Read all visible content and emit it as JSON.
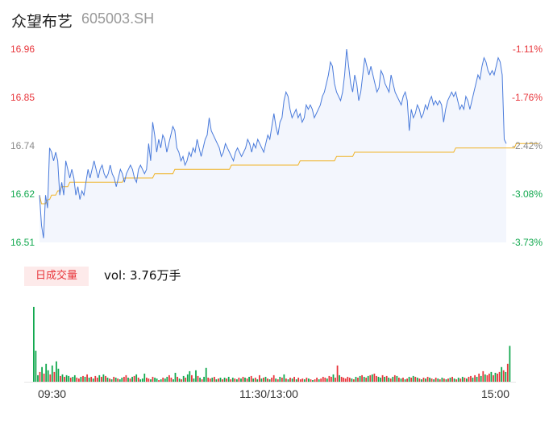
{
  "header": {
    "name": "众望布艺",
    "code": "605003.SH"
  },
  "volume_section": {
    "badge": "日成交量",
    "vol_text": "vol: 3.76万手"
  },
  "colors": {
    "up": "#e8353b",
    "down": "#11a84e",
    "price_line": "#4a7bdb",
    "avg_line": "#f0b429",
    "fill": "#f3f6fd"
  },
  "chart_data": [
    {
      "type": "line",
      "title": "",
      "y_ticks_left": [
        "16.96",
        "16.85",
        "16.74",
        "16.62",
        "16.51"
      ],
      "y_ticks_right": [
        "-1.11%",
        "-1.76%",
        "-2.42%",
        "-3.08%",
        "-3.73%"
      ],
      "ylim": [
        16.51,
        16.96
      ],
      "x_ticks": [
        "09:30",
        "11:30/13:00",
        "15:00"
      ],
      "series": [
        {
          "values": [
            16.62,
            16.55,
            16.52,
            16.62,
            16.59,
            16.73,
            16.72,
            16.7,
            16.72,
            16.7,
            16.62,
            16.65,
            16.62,
            16.7,
            16.68,
            16.66,
            16.68,
            16.66,
            16.62,
            16.64,
            16.61,
            16.63,
            16.62,
            16.65,
            16.68,
            16.66,
            16.68,
            16.7,
            16.68,
            16.66,
            16.68,
            16.69,
            16.67,
            16.66,
            16.67,
            16.69,
            16.67,
            16.66,
            16.64,
            16.66,
            16.68,
            16.67,
            16.65,
            16.67,
            16.68,
            16.69,
            16.68,
            16.66,
            16.65,
            16.68,
            16.69,
            16.68,
            16.67,
            16.68,
            16.74,
            16.7,
            16.79,
            16.76,
            16.72,
            16.75,
            16.73,
            16.76,
            16.75,
            16.72,
            16.74,
            16.76,
            16.78,
            16.77,
            16.73,
            16.72,
            16.7,
            16.71,
            16.69,
            16.7,
            16.72,
            16.71,
            16.73,
            16.72,
            16.75,
            16.73,
            16.71,
            16.73,
            16.75,
            16.76,
            16.8,
            16.77,
            16.76,
            16.75,
            16.74,
            16.73,
            16.71,
            16.72,
            16.74,
            16.73,
            16.72,
            16.71,
            16.7,
            16.72,
            16.73,
            16.72,
            16.71,
            16.72,
            16.73,
            16.75,
            16.74,
            16.72,
            16.74,
            16.73,
            16.75,
            16.74,
            16.73,
            16.72,
            16.74,
            16.76,
            16.75,
            16.78,
            16.81,
            16.78,
            16.76,
            16.79,
            16.8,
            16.84,
            16.86,
            16.85,
            16.82,
            16.8,
            16.81,
            16.82,
            16.8,
            16.81,
            16.79,
            16.8,
            16.83,
            16.82,
            16.83,
            16.82,
            16.8,
            16.81,
            16.82,
            16.83,
            16.85,
            16.86,
            16.88,
            16.9,
            16.93,
            16.92,
            16.88,
            16.86,
            16.85,
            16.84,
            16.86,
            16.9,
            16.96,
            16.92,
            16.88,
            16.86,
            16.9,
            16.88,
            16.84,
            16.86,
            16.9,
            16.94,
            16.92,
            16.9,
            16.92,
            16.9,
            16.88,
            16.86,
            16.87,
            16.91,
            16.9,
            16.88,
            16.87,
            16.86,
            16.9,
            16.88,
            16.86,
            16.85,
            16.84,
            16.83,
            16.85,
            16.86,
            16.84,
            16.77,
            16.82,
            16.8,
            16.81,
            16.83,
            16.82,
            16.8,
            16.81,
            16.83,
            16.82,
            16.84,
            16.85,
            16.83,
            16.84,
            16.83,
            16.84,
            16.83,
            16.79,
            16.82,
            16.84,
            16.85,
            16.86,
            16.85,
            16.86,
            16.84,
            16.82,
            16.83,
            16.82,
            16.85,
            16.84,
            16.82,
            16.84,
            16.86,
            16.88,
            16.9,
            16.89,
            16.92,
            16.94,
            16.93,
            16.91,
            16.9,
            16.91,
            16.9,
            16.92,
            16.94,
            16.93,
            16.9,
            16.75,
            16.74
          ]
        },
        {
          "values": [
            16.62,
            16.6,
            16.6,
            16.6,
            16.61,
            16.61,
            16.62,
            16.62,
            16.62,
            16.63,
            16.63,
            16.64,
            16.64,
            16.64,
            16.64,
            16.65,
            16.65,
            16.65,
            16.65,
            16.65,
            16.65,
            16.65,
            16.65,
            16.65,
            16.65,
            16.65,
            16.65,
            16.65,
            16.65,
            16.65,
            16.65,
            16.65,
            16.65,
            16.65,
            16.65,
            16.65,
            16.65,
            16.65,
            16.65,
            16.65,
            16.65,
            16.65,
            16.66,
            16.66,
            16.66,
            16.66,
            16.66,
            16.66,
            16.66,
            16.66,
            16.66,
            16.66,
            16.66,
            16.66,
            16.66,
            16.66,
            16.66,
            16.67,
            16.67,
            16.67,
            16.67,
            16.67,
            16.67,
            16.67,
            16.67,
            16.67,
            16.67,
            16.68,
            16.68,
            16.68,
            16.68,
            16.68,
            16.68,
            16.68,
            16.68,
            16.68,
            16.68,
            16.68,
            16.68,
            16.68,
            16.68,
            16.68,
            16.68,
            16.68,
            16.68,
            16.68,
            16.68,
            16.68,
            16.68,
            16.68,
            16.68,
            16.68,
            16.68,
            16.68,
            16.68,
            16.69,
            16.69,
            16.69,
            16.69,
            16.69,
            16.69,
            16.69,
            16.69,
            16.69,
            16.69,
            16.69,
            16.69,
            16.69,
            16.69,
            16.69,
            16.69,
            16.69,
            16.69,
            16.69,
            16.69,
            16.69,
            16.69,
            16.69,
            16.69,
            16.69,
            16.69,
            16.69,
            16.69,
            16.69,
            16.69,
            16.69,
            16.69,
            16.69,
            16.69,
            16.7,
            16.7,
            16.7,
            16.7,
            16.7,
            16.7,
            16.7,
            16.7,
            16.7,
            16.7,
            16.7,
            16.7,
            16.7,
            16.7,
            16.7,
            16.7,
            16.7,
            16.7,
            16.71,
            16.71,
            16.71,
            16.71,
            16.71,
            16.71,
            16.71,
            16.71,
            16.71,
            16.72,
            16.72,
            16.72,
            16.72,
            16.72,
            16.72,
            16.72,
            16.72,
            16.72,
            16.72,
            16.72,
            16.72,
            16.72,
            16.72,
            16.72,
            16.72,
            16.72,
            16.72,
            16.72,
            16.72,
            16.72,
            16.72,
            16.72,
            16.72,
            16.72,
            16.72,
            16.72,
            16.72,
            16.72,
            16.72,
            16.72,
            16.72,
            16.72,
            16.72,
            16.72,
            16.72,
            16.72,
            16.72,
            16.72,
            16.72,
            16.72,
            16.72,
            16.72,
            16.72,
            16.72,
            16.72,
            16.72,
            16.72,
            16.72,
            16.72,
            16.73,
            16.73,
            16.73,
            16.73,
            16.73,
            16.73,
            16.73,
            16.73,
            16.73,
            16.73,
            16.73,
            16.73,
            16.73,
            16.73,
            16.73,
            16.73,
            16.73,
            16.73,
            16.73,
            16.73,
            16.73,
            16.73,
            16.73,
            16.73,
            16.73,
            16.73,
            16.73,
            16.73,
            16.73,
            16.73,
            16.74,
            16.74,
            16.74,
            16.74,
            16.74,
            16.74,
            16.74,
            16.74,
            16.74,
            16.74,
            16.74,
            16.74
          ]
        }
      ]
    },
    {
      "type": "bar",
      "title": "",
      "values": [
        92,
        38,
        8,
        12,
        18,
        10,
        22,
        14,
        9,
        20,
        12,
        25,
        16,
        7,
        9,
        6,
        8,
        7,
        5,
        6,
        8,
        5,
        4,
        6,
        7,
        6,
        9,
        5,
        6,
        4,
        7,
        5,
        8,
        6,
        9,
        7,
        5,
        4,
        3,
        6,
        5,
        4,
        3,
        5,
        6,
        8,
        5,
        4,
        6,
        7,
        9,
        5,
        3,
        4,
        10,
        5,
        4,
        3,
        6,
        5,
        4,
        2,
        3,
        5,
        4,
        6,
        8,
        5,
        3,
        11,
        6,
        4,
        3,
        7,
        5,
        9,
        13,
        8,
        4,
        14,
        7,
        5,
        3,
        6,
        17,
        5,
        4,
        5,
        6,
        3,
        4,
        5,
        3,
        5,
        4,
        6,
        3,
        5,
        4,
        3,
        5,
        4,
        6,
        5,
        4,
        6,
        7,
        4,
        5,
        3,
        8,
        4,
        5,
        6,
        4,
        3,
        5,
        8,
        4,
        3,
        6,
        5,
        9,
        4,
        3,
        5,
        4,
        6,
        3,
        5,
        3,
        4,
        3,
        5,
        4,
        3,
        2,
        3,
        5,
        3,
        4,
        6,
        5,
        4,
        7,
        6,
        9,
        5,
        20,
        8,
        6,
        5,
        4,
        6,
        5,
        4,
        3,
        6,
        5,
        7,
        8,
        6,
        5,
        7,
        8,
        9,
        10,
        7,
        6,
        5,
        8,
        6,
        7,
        5,
        4,
        6,
        8,
        7,
        5,
        4,
        5,
        3,
        4,
        6,
        5,
        7,
        6,
        5,
        4,
        3,
        5,
        4,
        6,
        5,
        4,
        3,
        5,
        4,
        3,
        5,
        4,
        3,
        4,
        5,
        6,
        4,
        3,
        5,
        4,
        6,
        5,
        4,
        6,
        7,
        5,
        8,
        6,
        10,
        7,
        13,
        9,
        8,
        10,
        12,
        8,
        11,
        10,
        12,
        18,
        14,
        12,
        22,
        44
      ],
      "directions": [
        "d",
        "d",
        "d",
        "u",
        "d",
        "u",
        "d",
        "d",
        "u",
        "d",
        "u",
        "d",
        "d",
        "u",
        "d",
        "u",
        "d",
        "d",
        "u",
        "d",
        "d",
        "u",
        "u",
        "d",
        "u",
        "d",
        "u",
        "d",
        "u",
        "d",
        "u",
        "u",
        "d",
        "u",
        "d",
        "u",
        "d",
        "u",
        "d",
        "u",
        "d",
        "u",
        "d",
        "d",
        "u",
        "u",
        "d",
        "u",
        "d",
        "u",
        "d",
        "u",
        "d",
        "d",
        "d",
        "u",
        "u",
        "d",
        "u",
        "d",
        "d",
        "u",
        "d",
        "u",
        "d",
        "d",
        "u",
        "u",
        "d",
        "d",
        "u",
        "d",
        "u",
        "d",
        "u",
        "d",
        "d",
        "u",
        "d",
        "d",
        "u",
        "d",
        "u",
        "d",
        "d",
        "u",
        "u",
        "d",
        "u",
        "d",
        "u",
        "d",
        "u",
        "d",
        "u",
        "d",
        "u",
        "d",
        "u",
        "d",
        "u",
        "d",
        "u",
        "d",
        "u",
        "d",
        "u",
        "d",
        "u",
        "d",
        "u",
        "d",
        "u",
        "d",
        "u",
        "d",
        "u",
        "u",
        "d",
        "u",
        "d",
        "u",
        "d",
        "u",
        "d",
        "u",
        "d",
        "u",
        "d",
        "u",
        "u",
        "u",
        "d",
        "u",
        "d",
        "u",
        "d",
        "u",
        "u",
        "d",
        "u",
        "u",
        "u",
        "d",
        "u",
        "u",
        "d",
        "u",
        "u",
        "d",
        "u",
        "u",
        "u",
        "u",
        "u",
        "d",
        "u",
        "d",
        "u",
        "d",
        "u",
        "d",
        "u",
        "d",
        "u",
        "d",
        "u",
        "u",
        "d",
        "d",
        "u",
        "d",
        "u",
        "d",
        "u",
        "d",
        "u",
        "d",
        "u",
        "d",
        "u",
        "d",
        "u",
        "d",
        "u",
        "d",
        "u",
        "d",
        "u",
        "d",
        "u",
        "d",
        "u",
        "d",
        "u",
        "d",
        "u",
        "d",
        "u",
        "d",
        "u",
        "d",
        "u",
        "d",
        "u",
        "d",
        "u",
        "d",
        "u",
        "d",
        "u",
        "d",
        "u",
        "u",
        "d",
        "u",
        "d",
        "u",
        "d",
        "u",
        "d",
        "u",
        "u",
        "d",
        "u",
        "d",
        "u",
        "u",
        "d",
        "u",
        "d",
        "u",
        "d",
        "u",
        "u",
        "d",
        "u",
        "d",
        "u",
        "d",
        "u",
        "d",
        "u",
        "d",
        "u",
        "d",
        "u",
        "u"
      ]
    }
  ]
}
